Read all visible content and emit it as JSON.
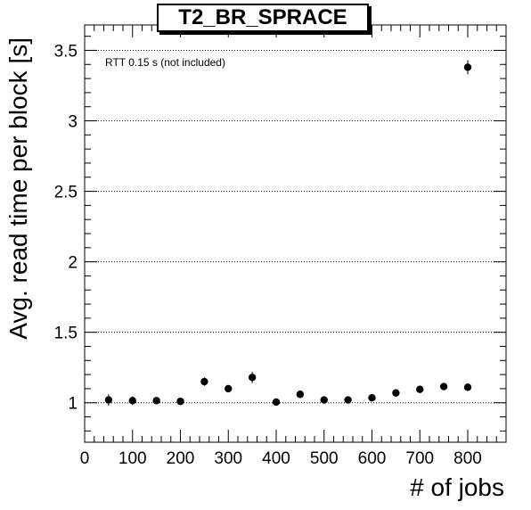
{
  "chart_data": {
    "type": "scatter",
    "title": "T2_BR_SPRACE",
    "annotation": "RTT 0.15 s (not included)",
    "xlabel": "# of jobs",
    "ylabel": "Avg. read time per block [s]",
    "xlim": [
      0,
      880
    ],
    "ylim": [
      0.72,
      3.68
    ],
    "x_ticks": [
      0,
      100,
      200,
      300,
      400,
      500,
      600,
      700,
      800
    ],
    "y_ticks": [
      1,
      1.5,
      2,
      2.5,
      3,
      3.5
    ],
    "y_grid": true,
    "x_grid": false,
    "error_bars": true,
    "points": [
      {
        "x": 50,
        "y": 1.02,
        "err": 0.04
      },
      {
        "x": 100,
        "y": 1.015,
        "err": 0.03
      },
      {
        "x": 150,
        "y": 1.015,
        "err": 0.025
      },
      {
        "x": 200,
        "y": 1.01,
        "err": 0.025
      },
      {
        "x": 250,
        "y": 1.15,
        "err": 0.03
      },
      {
        "x": 300,
        "y": 1.1,
        "err": 0.025
      },
      {
        "x": 350,
        "y": 1.18,
        "err": 0.04
      },
      {
        "x": 400,
        "y": 1.005,
        "err": 0.02
      },
      {
        "x": 450,
        "y": 1.06,
        "err": 0.025
      },
      {
        "x": 500,
        "y": 1.02,
        "err": 0.025
      },
      {
        "x": 550,
        "y": 1.02,
        "err": 0.025
      },
      {
        "x": 600,
        "y": 1.035,
        "err": 0.025
      },
      {
        "x": 650,
        "y": 1.07,
        "err": 0.025
      },
      {
        "x": 700,
        "y": 1.095,
        "err": 0.025
      },
      {
        "x": 750,
        "y": 1.115,
        "err": 0.025
      },
      {
        "x": 800,
        "y": 1.11,
        "err": 0.025
      },
      {
        "x": 800,
        "y": 3.38,
        "err": 0.05
      }
    ]
  }
}
